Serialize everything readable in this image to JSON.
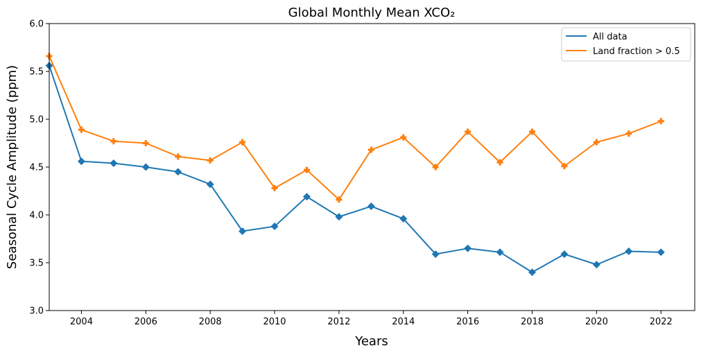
{
  "chart_data": {
    "type": "line",
    "title": "Global Monthly Mean XCO₂",
    "xlabel": "Years",
    "ylabel": "Seasonal Cycle Amplitude (ppm)",
    "xlim": [
      2003,
      2023.05
    ],
    "ylim": [
      3.0,
      6.0
    ],
    "x_ticks": [
      2004,
      2006,
      2008,
      2010,
      2012,
      2014,
      2016,
      2018,
      2020,
      2022
    ],
    "y_ticks": [
      3.0,
      3.5,
      4.0,
      4.5,
      5.0,
      5.5,
      6.0
    ],
    "grid": false,
    "legend_position": "top-right",
    "x": [
      2003,
      2004,
      2005,
      2006,
      2007,
      2008,
      2009,
      2010,
      2011,
      2012,
      2013,
      2014,
      2015,
      2016,
      2017,
      2018,
      2019,
      2020,
      2021,
      2022
    ],
    "series": [
      {
        "name": "All data",
        "color": "#1f77b4",
        "marker": "diamond",
        "values": [
          5.56,
          4.56,
          4.54,
          4.5,
          4.45,
          4.32,
          3.83,
          3.88,
          4.19,
          3.98,
          4.09,
          3.96,
          3.59,
          3.65,
          3.61,
          3.4,
          3.59,
          3.48,
          3.62,
          3.61
        ]
      },
      {
        "name": "Land fraction > 0.5",
        "color": "#ff7f0e",
        "marker": "plus",
        "values": [
          5.66,
          4.89,
          4.77,
          4.75,
          4.61,
          4.57,
          4.76,
          4.28,
          4.47,
          4.16,
          4.68,
          4.81,
          4.5,
          4.87,
          4.55,
          4.87,
          4.51,
          4.76,
          4.85,
          4.98
        ]
      }
    ]
  }
}
